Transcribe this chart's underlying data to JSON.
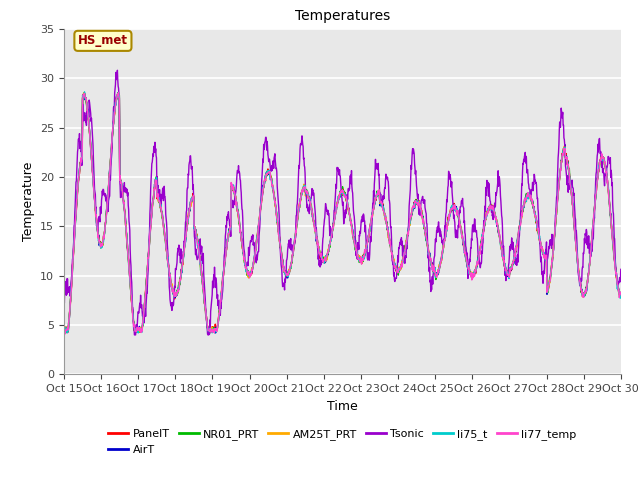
{
  "title": "Temperatures",
  "xlabel": "Time",
  "ylabel": "Temperature",
  "ylim": [
    0,
    35
  ],
  "annotation_text": "HS_met",
  "annotation_facecolor": "#ffffcc",
  "annotation_edgecolor": "#aa8800",
  "annotation_textcolor": "#990000",
  "legend_entries": [
    "PanelT",
    "AirT",
    "NR01_PRT",
    "AM25T_PRT",
    "Tsonic",
    "li75_t",
    "li77_temp"
  ],
  "line_colors": [
    "#ff0000",
    "#0000cc",
    "#00bb00",
    "#ffaa00",
    "#9900cc",
    "#00cccc",
    "#ff44cc"
  ],
  "xtick_labels": [
    "Oct 15",
    "Oct 16",
    "Oct 17",
    "Oct 18",
    "Oct 19",
    "Oct 20",
    "Oct 21",
    "Oct 22",
    "Oct 23",
    "Oct 24",
    "Oct 25",
    "Oct 26",
    "Oct 27",
    "Oct 28",
    "Oct 29",
    "Oct 30"
  ],
  "ytick_vals": [
    0,
    5,
    10,
    15,
    20,
    25,
    30,
    35
  ],
  "plot_bg_color": "#e8e8e8",
  "fig_bg_color": "#ffffff",
  "grid_color": "#ffffff",
  "title_fontsize": 10,
  "label_fontsize": 9,
  "tick_fontsize": 8,
  "line_width": 1.0,
  "n_points": 1440
}
